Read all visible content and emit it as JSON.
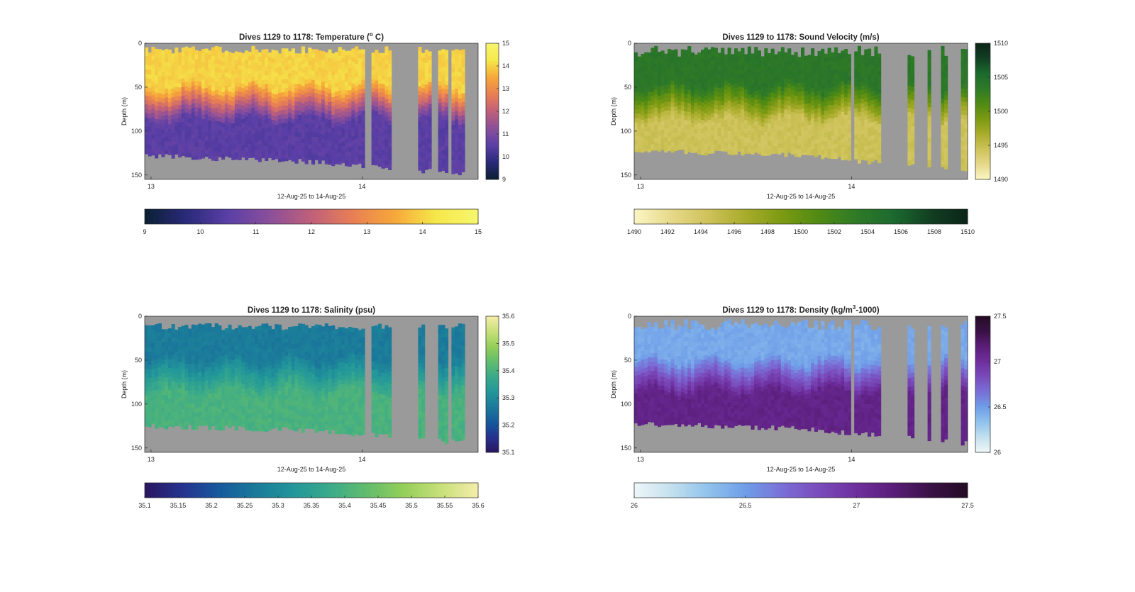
{
  "figure": {
    "background": "#ffffff",
    "nodata_color": "#9a9a9a"
  },
  "chart_data": [
    {
      "type": "heatmap",
      "id": "temperature",
      "title": "Dives 1129 to 1178: Temperature (",
      "title_sup": "o",
      "title_after": " C)",
      "xlabel": "12-Aug-25 to 14-Aug-25",
      "ylabel": "Depth (m)",
      "x_ticks": [
        "13",
        "14"
      ],
      "y_ticks": [
        "0",
        "50",
        "100",
        "150"
      ],
      "y_ticks_values": [
        0,
        50,
        100,
        150
      ],
      "ylim": [
        0,
        155
      ],
      "x_day_range": [
        12.97,
        14.55
      ],
      "x_tick_values": [
        13,
        14
      ],
      "clim": [
        9,
        15
      ],
      "colorbar_ticks": [
        "9",
        "10",
        "11",
        "12",
        "13",
        "14",
        "15"
      ],
      "hcolorbar_ticks": [
        "9",
        "10",
        "11",
        "12",
        "13",
        "14",
        "15"
      ],
      "colormap": [
        "#0b1f33",
        "#2a2a7a",
        "#5a3fa6",
        "#8b4f9a",
        "#c0607a",
        "#e87f54",
        "#f6a83a",
        "#f5e84a",
        "#f8f66e"
      ],
      "mixed_layer": {
        "surface": 14.0,
        "thermocline_start": 45,
        "thermocline_end": 85,
        "deep": 10.5
      },
      "gaps": [
        [
          14.02,
          14.05
        ],
        [
          14.14,
          14.27
        ],
        [
          14.33,
          14.36
        ],
        [
          14.4,
          14.42
        ],
        [
          14.48,
          14.55
        ]
      ],
      "bottom_depth": {
        "start": 128,
        "mid": 135,
        "end": 150
      },
      "surface_depth_range": [
        3,
        12
      ]
    },
    {
      "type": "heatmap",
      "id": "sound_velocity",
      "title": "Dives 1129 to 1178: Sound Velocity (m/s)",
      "xlabel": "12-Aug-25 to 14-Aug-25",
      "ylabel": "Depth (m)",
      "x_ticks": [
        "13",
        "14"
      ],
      "y_ticks": [
        "0",
        "50",
        "100",
        "150"
      ],
      "y_ticks_values": [
        0,
        50,
        100,
        150
      ],
      "ylim": [
        0,
        155
      ],
      "x_day_range": [
        12.97,
        14.55
      ],
      "x_tick_values": [
        13,
        14
      ],
      "clim": [
        1490,
        1510
      ],
      "colorbar_ticks": [
        "1490",
        "1495",
        "1500",
        "1505",
        "1510"
      ],
      "hcolorbar_ticks": [
        "1490",
        "1492",
        "1494",
        "1496",
        "1498",
        "1500",
        "1502",
        "1504",
        "1506",
        "1508",
        "1510"
      ],
      "colormap": [
        "#fbf5c4",
        "#e6d98a",
        "#cec25a",
        "#a8ac2b",
        "#7c9a12",
        "#4f8a14",
        "#2f7a27",
        "#1c6a2f",
        "#123f22",
        "#0b2418"
      ],
      "mixed_layer": {
        "surface": 1503.8,
        "thermocline_start": 45,
        "thermocline_end": 85,
        "deep": 1494.5
      },
      "gaps": [
        [
          14.0,
          14.02
        ],
        [
          14.14,
          14.27
        ],
        [
          14.29,
          14.36
        ],
        [
          14.38,
          14.42
        ],
        [
          14.45,
          14.52
        ]
      ],
      "bottom_depth": {
        "start": 122,
        "mid": 128,
        "end": 145
      },
      "surface_depth_range": [
        3,
        16
      ]
    },
    {
      "type": "heatmap",
      "id": "salinity",
      "title": "Dives 1129 to 1178: Salinity (psu)",
      "xlabel": "12-Aug-25 to 14-Aug-25",
      "ylabel": "Depth (m)",
      "x_ticks": [
        "13",
        "14"
      ],
      "y_ticks": [
        "0",
        "50",
        "100",
        "150"
      ],
      "y_ticks_values": [
        0,
        50,
        100,
        150
      ],
      "ylim": [
        0,
        155
      ],
      "x_day_range": [
        12.97,
        14.55
      ],
      "x_tick_values": [
        13,
        14
      ],
      "clim": [
        35.1,
        35.6
      ],
      "colorbar_ticks": [
        "35.1",
        "35.2",
        "35.3",
        "35.4",
        "35.5",
        "35.6"
      ],
      "hcolorbar_ticks": [
        "35.1",
        "35.15",
        "35.2",
        "35.25",
        "35.3",
        "35.35",
        "35.4",
        "35.45",
        "35.5",
        "35.55",
        "35.6"
      ],
      "colormap": [
        "#2a1660",
        "#25338f",
        "#16599c",
        "#1b7a9a",
        "#22969a",
        "#3aaa8a",
        "#62bc6c",
        "#95cf5a",
        "#c8e07a",
        "#f5ecaa"
      ],
      "mixed_layer": {
        "surface": 35.27,
        "thermocline_start": 45,
        "thermocline_end": 85,
        "deep": 35.4
      },
      "gaps": [
        [
          14.02,
          14.05
        ],
        [
          14.14,
          14.27
        ],
        [
          14.3,
          14.36
        ],
        [
          14.4,
          14.42
        ],
        [
          14.48,
          14.55
        ]
      ],
      "bottom_depth": {
        "start": 125,
        "mid": 130,
        "end": 145
      },
      "surface_depth_range": [
        8,
        16
      ]
    },
    {
      "type": "heatmap",
      "id": "density",
      "title": "Dives 1129 to 1178: Density (kg/m",
      "title_sup": "3",
      "title_after": "-1000)",
      "xlabel": "12-Aug-25 to 14-Aug-25",
      "ylabel": "Depth (m)",
      "x_ticks": [
        "13",
        "14"
      ],
      "y_ticks": [
        "0",
        "50",
        "100",
        "150"
      ],
      "y_ticks_values": [
        0,
        50,
        100,
        150
      ],
      "ylim": [
        0,
        155
      ],
      "x_day_range": [
        12.97,
        14.55
      ],
      "x_tick_values": [
        13,
        14
      ],
      "clim": [
        26,
        27.5
      ],
      "colorbar_ticks": [
        "26",
        "26.5",
        "27",
        "27.5"
      ],
      "hcolorbar_ticks": [
        "26",
        "26.5",
        "27",
        "27.5"
      ],
      "colormap": [
        "#eef6f7",
        "#c4e0ee",
        "#8fc2ec",
        "#6f9ee8",
        "#7a6fd6",
        "#7a4bbb",
        "#6e2f9e",
        "#5a1d78",
        "#3a1246",
        "#240b25"
      ],
      "mixed_layer": {
        "surface": 26.45,
        "thermocline_start": 45,
        "thermocline_end": 85,
        "deep": 27.1
      },
      "gaps": [
        [
          14.0,
          14.02
        ],
        [
          14.14,
          14.27
        ],
        [
          14.29,
          14.36
        ],
        [
          14.38,
          14.42
        ],
        [
          14.45,
          14.52
        ]
      ],
      "bottom_depth": {
        "start": 122,
        "mid": 128,
        "end": 145
      },
      "surface_depth_range": [
        3,
        16
      ]
    }
  ]
}
